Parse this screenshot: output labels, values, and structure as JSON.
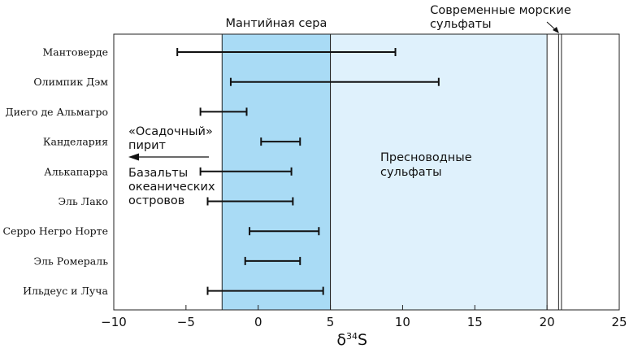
{
  "chart_data": {
    "type": "error-range",
    "xlabel_main": "δ",
    "xlabel_sup": "34",
    "xlabel_suffix": "S",
    "xlim": [
      -10,
      25
    ],
    "x_ticks": [
      -10,
      -5,
      0,
      5,
      10,
      15,
      20,
      25
    ],
    "x_tick_labels": [
      "−10",
      "−5",
      "0",
      "5",
      "10",
      "15",
      "20",
      "25"
    ],
    "grid": false,
    "categories": [
      "Мантоверде",
      "Олимпик Дэм",
      "Диего де Альмагро",
      "Канделария",
      "Алькапарра",
      "Эль Лако",
      "Серро Негро Норте",
      "Эль Ромераль",
      "Ильдеус и Луча"
    ],
    "ranges": [
      {
        "name": "Мантоверде",
        "min": -5.6,
        "max": 9.5
      },
      {
        "name": "Олимпик Дэм",
        "min": -1.9,
        "max": 12.5
      },
      {
        "name": "Диего де Альмагро",
        "min": -4.0,
        "max": -0.8
      },
      {
        "name": "Канделария",
        "min": 0.2,
        "max": 2.9
      },
      {
        "name": "Алькапарра",
        "min": -4.0,
        "max": 2.3
      },
      {
        "name": "Эль Лако",
        "min": -3.5,
        "max": 2.4
      },
      {
        "name": "Серро Негро Норте",
        "min": -0.6,
        "max": 4.2
      },
      {
        "name": "Эль Ромераль",
        "min": -0.9,
        "max": 2.9
      },
      {
        "name": "Ильдеус и Луча",
        "min": -3.5,
        "max": 4.5
      }
    ],
    "zones": {
      "mantle": {
        "label": "Мантийная сера",
        "min": -2.5,
        "max": 5,
        "color": "#a9dbf5"
      },
      "freshwater": {
        "label_line1": "Пресноводные",
        "label_line2": "сульфаты",
        "min": 5,
        "max": 20,
        "color": "#dff1fc"
      },
      "marine": {
        "label_line1": "Современные морские",
        "label_line2": "сульфаты",
        "min": 20.8,
        "max": 21.0
      }
    },
    "annotations": {
      "sedimentary_line1": "«Осадочный»",
      "sedimentary_line2": "пирит",
      "basalt_line1": "Базальты",
      "basalt_line2": "океанических",
      "basalt_line3": "островов"
    }
  }
}
